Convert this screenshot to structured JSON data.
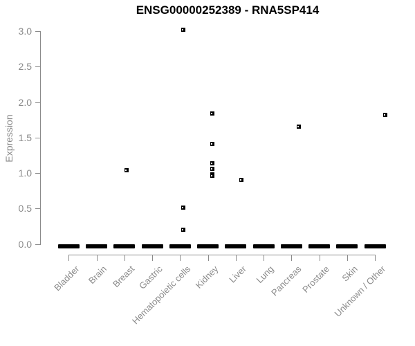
{
  "chart_data": {
    "type": "scatter",
    "subtype": "strip-plot",
    "title": "ENSG00000252389 - RNA5SP414",
    "xlabel": "",
    "ylabel": "Expression",
    "ylim": [
      0.0,
      3.0
    ],
    "ytick_labels": [
      "0.0",
      "0.5",
      "1.0",
      "1.5",
      "2.0",
      "2.5",
      "3.0"
    ],
    "ytick_values": [
      0.0,
      0.5,
      1.0,
      1.5,
      2.0,
      2.5,
      3.0
    ],
    "categories": [
      "Bladder",
      "Brain",
      "Breast",
      "Gastric",
      "Hematopoietic cells",
      "Kidney",
      "Liver",
      "Lung",
      "Pancreas",
      "Prostate",
      "Skin",
      "Unknown / Other"
    ],
    "nonzero_points": [
      {
        "category": "Breast",
        "value": 1.04
      },
      {
        "category": "Hematopoietic cells",
        "value": 3.02
      },
      {
        "category": "Hematopoietic cells",
        "value": 0.51
      },
      {
        "category": "Hematopoietic cells",
        "value": 0.2
      },
      {
        "category": "Kidney",
        "value": 1.84
      },
      {
        "category": "Kidney",
        "value": 1.41
      },
      {
        "category": "Kidney",
        "value": 1.14
      },
      {
        "category": "Kidney",
        "value": 1.06
      },
      {
        "category": "Kidney",
        "value": 0.98
      },
      {
        "category": "Kidney",
        "value": 0.96
      },
      {
        "category": "Liver",
        "value": 0.9
      },
      {
        "category": "Pancreas",
        "value": 1.65
      },
      {
        "category": "Unknown / Other",
        "value": 1.82
      }
    ],
    "zero_cluster_all_categories": true,
    "zero_cluster_note": "every category shows a dense horizontal cluster of points at expression 0",
    "grid": false,
    "legend": null,
    "marker": "small-open-black-square",
    "colors": {
      "marker": "#000000",
      "axis": "#8a8a8a",
      "tick_text": "#8a8a8a",
      "title_text": "#000000",
      "background": "#ffffff"
    }
  }
}
